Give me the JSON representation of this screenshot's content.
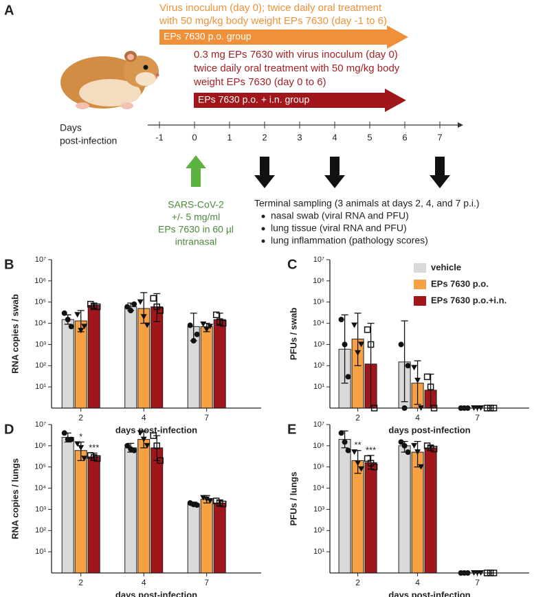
{
  "diagram": {
    "panel_label": "A",
    "po_text": [
      "Virus inoculum (day 0); twice daily oral treatment",
      "with 50 mg/kg body weight EPs 7630 (day -1 to 6)"
    ],
    "po_arrow": "EPs 7630 p.o. group",
    "pin_text": [
      "0.3 mg EPs 7630 with virus inoculum (day 0)",
      "twice daily oral treatment with 50 mg/kg body",
      "weight EPs 7630 (day 0 to 6)"
    ],
    "pin_arrow": "EPs 7630 p.o. + i.n. group",
    "axis_label": [
      "Days",
      "post-infection"
    ],
    "days": [
      -1,
      0,
      1,
      2,
      3,
      4,
      5,
      6,
      7
    ],
    "inoculation": [
      "SARS-CoV-2",
      "+/- 5 mg/ml",
      "EPs 7630 in 60 µl",
      "intranasal"
    ],
    "sampling_title": "Terminal sampling (3 animals at days 2, 4, and 7 p.i.)",
    "sampling_items": [
      "nasal swab (viral RNA and PFU)",
      "lung tissue (viral RNA and PFU)",
      "lung inflammation (pathology scores)"
    ]
  },
  "chart_data": [
    {
      "type": "bar",
      "panel_label": "B",
      "y_label": "RNA copies / swab",
      "x_label": "days post-infection",
      "log_scale": true,
      "categories": [
        "2",
        "4",
        "7"
      ],
      "ylim": [
        1,
        10000000
      ],
      "yticks": [
        {
          "value": 10,
          "label": "10¹"
        },
        {
          "value": 100,
          "label": "10²"
        },
        {
          "value": 1000,
          "label": "10³"
        },
        {
          "value": 10000,
          "label": "10⁴"
        },
        {
          "value": 100000,
          "label": "10⁵"
        },
        {
          "value": 1000000,
          "label": "10⁶"
        },
        {
          "value": 10000000,
          "label": "10⁷"
        }
      ],
      "series": [
        {
          "color": "#d9d9d9",
          "marker": "circle",
          "values": [
            15000,
            60000,
            7000
          ],
          "errors": [
            [
              9000,
              25000
            ],
            [
              40000,
              90000
            ],
            [
              1500,
              30000
            ]
          ],
          "points": [
            [
              30000,
              15000,
              7000
            ],
            [
              60000,
              40000,
              80000
            ],
            [
              8000,
              1500,
              3000
            ]
          ]
        },
        {
          "color": "#f7a145",
          "marker": "triangle",
          "values": [
            13000,
            50000,
            7000
          ],
          "errors": [
            [
              4000,
              40000
            ],
            [
              10000,
              280000
            ],
            [
              4000,
              10000
            ]
          ],
          "points": [
            [
              25000,
              4500,
              7000
            ],
            [
              100000,
              20000,
              8000
            ],
            [
              9000,
              5000,
              7000
            ]
          ]
        },
        {
          "color": "#a0161b",
          "marker": "square-open",
          "values": [
            70000,
            60000,
            15000
          ],
          "errors": [
            [
              50000,
              90000
            ],
            [
              12000,
              250000
            ],
            [
              8000,
              30000
            ]
          ],
          "points": [
            [
              80000,
              60000,
              60000
            ],
            [
              150000,
              60000,
              40000
            ],
            [
              25000,
              12000,
              10000
            ]
          ]
        }
      ]
    },
    {
      "type": "bar",
      "panel_label": "C",
      "y_label": "PFUs / swab",
      "x_label": "days post-infection",
      "log_scale": true,
      "categories": [
        "2",
        "4",
        "7"
      ],
      "ylim": [
        1,
        10000000
      ],
      "legend": "upper right",
      "yticks": [
        {
          "value": 10,
          "label": "10¹"
        },
        {
          "value": 100,
          "label": "10²"
        },
        {
          "value": 1000,
          "label": "10³"
        },
        {
          "value": 10000,
          "label": "10⁴"
        },
        {
          "value": 100000,
          "label": "10⁵"
        },
        {
          "value": 1000000,
          "label": "10⁶"
        },
        {
          "value": 10000000,
          "label": "10⁷"
        }
      ],
      "series": [
        {
          "name": "vehicle",
          "color": "#d9d9d9",
          "marker": "circle",
          "values": [
            600,
            150,
            1
          ],
          "errors": [
            [
              15,
              25000
            ],
            [
              2,
              13000
            ],
            [
              1,
              1
            ]
          ],
          "points": [
            [
              15000,
              1000,
              30
            ],
            [
              1000,
              1,
              100
            ],
            [
              1,
              1,
              1
            ]
          ]
        },
        {
          "name": "EPs 7630 p.o.",
          "color": "#f7a145",
          "marker": "triangle",
          "values": [
            1800,
            15,
            1
          ],
          "errors": [
            [
              100,
              30000
            ],
            [
              1.5,
              170
            ],
            [
              1,
              1
            ]
          ],
          "points": [
            [
              8000,
              400,
              1000
            ],
            [
              80,
              20,
              1
            ],
            [
              1,
              1,
              1
            ]
          ]
        },
        {
          "name": "EPs 7630 p.o.+i.n.",
          "color": "#a0161b",
          "marker": "square-open",
          "values": [
            120,
            7,
            1
          ],
          "errors": [
            [
              1,
              10000
            ],
            [
              1,
              40
            ],
            [
              1,
              1
            ]
          ],
          "points": [
            [
              5000,
              1000,
              1
            ],
            [
              30,
              10,
              1
            ],
            [
              1,
              1,
              1
            ]
          ]
        }
      ]
    },
    {
      "type": "bar",
      "panel_label": "D",
      "y_label": "RNA copies / lungs",
      "x_label": "days post-infection",
      "log_scale": true,
      "categories": [
        "2",
        "4",
        "7"
      ],
      "ylim": [
        1,
        10000000
      ],
      "yticks": [
        {
          "value": 10,
          "label": "10¹"
        },
        {
          "value": 100,
          "label": "10²"
        },
        {
          "value": 1000,
          "label": "10³"
        },
        {
          "value": 10000,
          "label": "10⁴"
        },
        {
          "value": 100000,
          "label": "10⁵"
        },
        {
          "value": 1000000,
          "label": "10⁶"
        },
        {
          "value": 10000000,
          "label": "10⁷"
        }
      ],
      "series": [
        {
          "color": "#d9d9d9",
          "marker": "circle",
          "values": [
            2500000,
            800000,
            1800
          ],
          "errors": [
            [
              1500000,
              4000000
            ],
            [
              500000,
              1300000
            ],
            [
              1500,
              2200
            ]
          ],
          "points": [
            [
              4000000,
              2000000,
              2000000
            ],
            [
              1000000,
              700000,
              600000
            ],
            [
              2000,
              1700,
              1600
            ]
          ]
        },
        {
          "color": "#f7a145",
          "marker": "triangle",
          "values": [
            600000,
            2000000,
            3000
          ],
          "errors": [
            [
              200000,
              1500000
            ],
            [
              800000,
              5000000
            ],
            [
              2000,
              4500
            ]
          ],
          "points": [
            [
              1200000,
              800000,
              250000
            ],
            [
              4000000,
              2000000,
              1000000
            ],
            [
              3500,
              3000,
              2500
            ]
          ],
          "stars": [
            "*",
            null,
            null
          ]
        },
        {
          "color": "#a0161b",
          "marker": "square-open",
          "values": [
            300000,
            800000,
            2000
          ],
          "errors": [
            [
              200000,
              450000
            ],
            [
              200000,
              3000000
            ],
            [
              1400,
              2800
            ]
          ],
          "points": [
            [
              350000,
              280000,
              250000
            ],
            [
              3000000,
              1000000,
              200000
            ],
            [
              2500,
              2000,
              1800
            ]
          ],
          "stars": [
            "***",
            null,
            null
          ]
        }
      ]
    },
    {
      "type": "bar",
      "panel_label": "E",
      "y_label": "PFUs / lungs",
      "x_label": "days post-infection",
      "log_scale": true,
      "categories": [
        "2",
        "4",
        "7"
      ],
      "ylim": [
        1,
        10000000
      ],
      "yticks": [
        {
          "value": 10,
          "label": "10¹"
        },
        {
          "value": 100,
          "label": "10²"
        },
        {
          "value": 1000,
          "label": "10³"
        },
        {
          "value": 10000,
          "label": "10⁴"
        },
        {
          "value": 100000,
          "label": "10⁵"
        },
        {
          "value": 1000000,
          "label": "10⁶"
        },
        {
          "value": 10000000,
          "label": "10⁷"
        }
      ],
      "series": [
        {
          "color": "#d9d9d9",
          "marker": "circle",
          "values": [
            2000000,
            1000000,
            1
          ],
          "errors": [
            [
              800000,
              5000000
            ],
            [
              500000,
              1600000
            ],
            [
              1,
              1
            ]
          ],
          "points": [
            [
              4000000,
              1500000,
              600000
            ],
            [
              1500000,
              1000000,
              500000
            ],
            [
              1,
              1,
              1
            ]
          ]
        },
        {
          "color": "#f7a145",
          "marker": "triangle",
          "values": [
            200000,
            500000,
            1
          ],
          "errors": [
            [
              50000,
              600000
            ],
            [
              100000,
              1600000
            ],
            [
              1,
              1
            ]
          ],
          "points": [
            [
              500000,
              150000,
              80000
            ],
            [
              1000000,
              500000,
              100000
            ],
            [
              1,
              1,
              1
            ]
          ],
          "stars": [
            "**",
            null,
            null
          ]
        },
        {
          "color": "#a0161b",
          "marker": "square-open",
          "values": [
            160000,
            800000,
            1
          ],
          "errors": [
            [
              80000,
              350000
            ],
            [
              600000,
              1000000
            ],
            [
              1,
              1
            ]
          ],
          "points": [
            [
              250000,
              150000,
              100000
            ],
            [
              1000000,
              800000,
              700000
            ],
            [
              1,
              1,
              1
            ]
          ],
          "stars": [
            "***",
            null,
            null
          ]
        }
      ]
    }
  ]
}
